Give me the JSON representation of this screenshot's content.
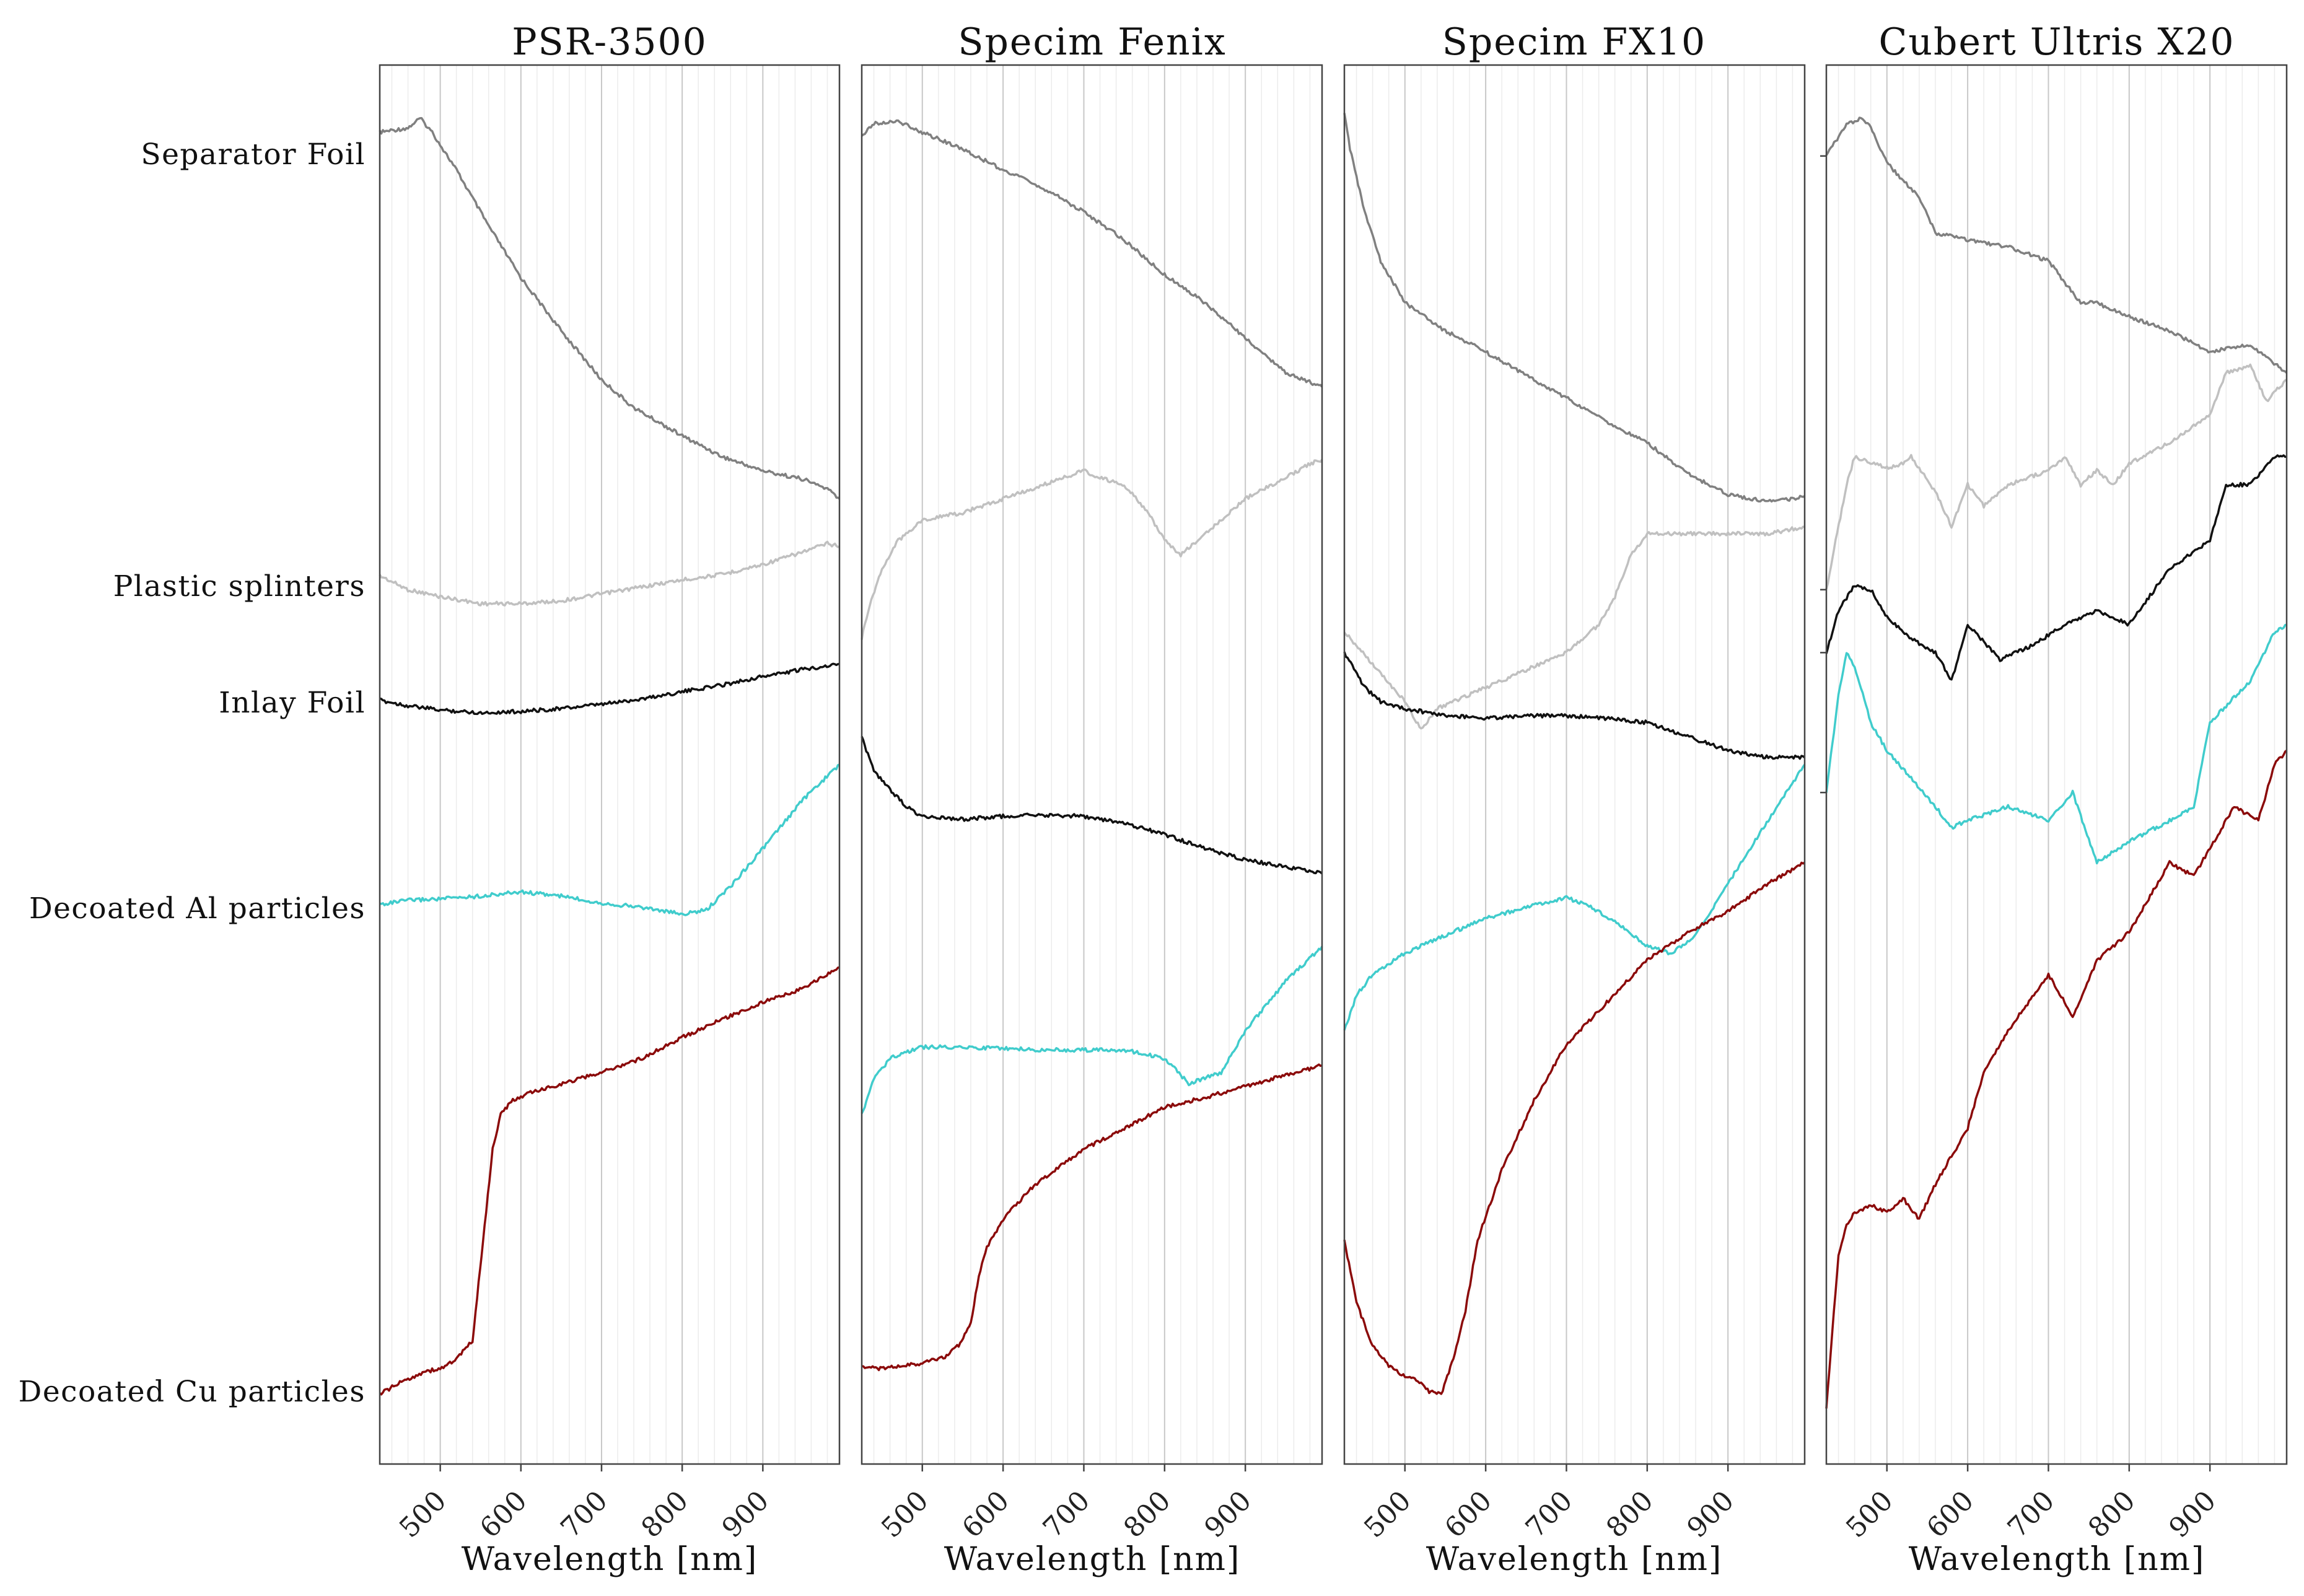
{
  "chart_data": {
    "type": "line",
    "xlabel": "Wavelength [nm]",
    "x_ticks": [
      500,
      600,
      700,
      800,
      900
    ],
    "xlim": [
      425,
      995
    ],
    "ylabel_markers": [
      "Separator Foil",
      "Plastic splinters",
      "Inlay Foil",
      "Decoated Al particles",
      "Decoated Cu particles"
    ],
    "series_styles": [
      {
        "name": "Separator Foil",
        "color": "#808080"
      },
      {
        "name": "Plastic splinters",
        "color": "#c0c0c0"
      },
      {
        "name": "Inlay Foil",
        "color": "#111111"
      },
      {
        "name": "Decoated Al particles",
        "color": "#40cccc"
      },
      {
        "name": "Decoated Cu particles",
        "color": "#8b0a0a"
      }
    ],
    "panels": [
      {
        "title": "PSR-3500",
        "y_range": [
          0,
          1
        ],
        "series": [
          {
            "name": "Separator Foil",
            "x": [
              425,
              460,
              475,
              490,
              520,
              560,
              600,
              650,
              700,
              740,
              800,
              850,
              900,
              950,
              980,
              995
            ],
            "y": [
              0.952,
              0.955,
              0.962,
              0.952,
              0.925,
              0.885,
              0.848,
              0.81,
              0.775,
              0.755,
              0.735,
              0.72,
              0.71,
              0.704,
              0.697,
              0.69
            ]
          },
          {
            "name": "Plastic splinters",
            "x": [
              425,
              460,
              500,
              550,
              600,
              650,
              700,
              750,
              800,
              850,
              900,
              950,
              980,
              995
            ],
            "y": [
              0.635,
              0.625,
              0.62,
              0.615,
              0.615,
              0.617,
              0.622,
              0.627,
              0.632,
              0.636,
              0.643,
              0.652,
              0.658,
              0.656
            ]
          },
          {
            "name": "Inlay Foil",
            "x": [
              425,
              460,
              500,
              550,
              600,
              650,
              700,
              750,
              800,
              850,
              900,
              950,
              995
            ],
            "y": [
              0.546,
              0.542,
              0.539,
              0.537,
              0.538,
              0.54,
              0.543,
              0.547,
              0.552,
              0.557,
              0.563,
              0.568,
              0.572
            ]
          },
          {
            "name": "Decoated Al particles",
            "x": [
              425,
              460,
              500,
              550,
              600,
              650,
              700,
              750,
              800,
              830,
              860,
              900,
              950,
              995
            ],
            "y": [
              0.4,
              0.403,
              0.404,
              0.406,
              0.409,
              0.406,
              0.401,
              0.398,
              0.393,
              0.396,
              0.413,
              0.44,
              0.475,
              0.5
            ]
          },
          {
            "name": "Decoated Cu particles",
            "x": [
              425,
              450,
              480,
              500,
              520,
              540,
              555,
              565,
              575,
              590,
              610,
              640,
              700,
              750,
              800,
              850,
              900,
              950,
              995
            ],
            "y": [
              0.05,
              0.058,
              0.066,
              0.068,
              0.075,
              0.088,
              0.17,
              0.225,
              0.25,
              0.26,
              0.265,
              0.27,
              0.28,
              0.29,
              0.305,
              0.318,
              0.33,
              0.34,
              0.355
            ]
          }
        ]
      },
      {
        "title": "Specim Fenix",
        "y_range": [
          0,
          1
        ],
        "series": [
          {
            "name": "Separator Foil",
            "x": [
              425,
              440,
              470,
              500,
              550,
              600,
              650,
              700,
              750,
              800,
              850,
              900,
              950,
              995
            ],
            "y": [
              0.95,
              0.958,
              0.96,
              0.952,
              0.94,
              0.925,
              0.912,
              0.895,
              0.875,
              0.85,
              0.83,
              0.805,
              0.78,
              0.77
            ]
          },
          {
            "name": "Plastic splinters",
            "x": [
              425,
              435,
              450,
              470,
              500,
              550,
              600,
              650,
              700,
              720,
              750,
              780,
              800,
              820,
              850,
              900,
              950,
              980,
              995
            ],
            "y": [
              0.59,
              0.615,
              0.64,
              0.66,
              0.675,
              0.68,
              0.69,
              0.7,
              0.71,
              0.705,
              0.7,
              0.68,
              0.66,
              0.65,
              0.665,
              0.69,
              0.705,
              0.715,
              0.718
            ]
          },
          {
            "name": "Inlay Foil",
            "x": [
              425,
              440,
              460,
              480,
              500,
              550,
              600,
              650,
              700,
              750,
              800,
              850,
              900,
              950,
              995
            ],
            "y": [
              0.52,
              0.495,
              0.482,
              0.47,
              0.463,
              0.461,
              0.463,
              0.464,
              0.463,
              0.458,
              0.45,
              0.44,
              0.432,
              0.427,
              0.422
            ]
          },
          {
            "name": "Decoated Al particles",
            "x": [
              425,
              440,
              460,
              500,
              550,
              600,
              650,
              700,
              750,
              800,
              830,
              870,
              900,
              950,
              995
            ],
            "y": [
              0.25,
              0.275,
              0.29,
              0.298,
              0.298,
              0.297,
              0.296,
              0.296,
              0.296,
              0.29,
              0.272,
              0.28,
              0.31,
              0.345,
              0.37
            ]
          },
          {
            "name": "Decoated Cu particles",
            "x": [
              425,
              450,
              500,
              530,
              545,
              560,
              570,
              580,
              600,
              640,
              700,
              750,
              800,
              850,
              900,
              950,
              995
            ],
            "y": [
              0.07,
              0.068,
              0.072,
              0.077,
              0.085,
              0.1,
              0.135,
              0.155,
              0.175,
              0.2,
              0.225,
              0.24,
              0.255,
              0.262,
              0.27,
              0.278,
              0.285
            ]
          }
        ]
      },
      {
        "title": "Specim FX10",
        "y_range": [
          0,
          1
        ],
        "series": [
          {
            "name": "Separator Foil",
            "x": [
              425,
              432,
              440,
              450,
              470,
              500,
              550,
              600,
              650,
              700,
              750,
              800,
              850,
              900,
              950,
              980,
              995
            ],
            "y": [
              0.965,
              0.94,
              0.92,
              0.895,
              0.86,
              0.83,
              0.81,
              0.795,
              0.778,
              0.762,
              0.745,
              0.73,
              0.708,
              0.693,
              0.688,
              0.69,
              0.692
            ]
          },
          {
            "name": "Plastic splinters",
            "x": [
              425,
              440,
              470,
              500,
              520,
              540,
              580,
              620,
              660,
              700,
              740,
              760,
              780,
              800,
              850,
              900,
              950,
              995
            ],
            "y": [
              0.595,
              0.585,
              0.565,
              0.545,
              0.525,
              0.54,
              0.55,
              0.56,
              0.57,
              0.58,
              0.6,
              0.62,
              0.65,
              0.665,
              0.665,
              0.665,
              0.665,
              0.67
            ]
          },
          {
            "name": "Inlay Foil",
            "x": [
              425,
              435,
              450,
              470,
              500,
              550,
              600,
              650,
              700,
              750,
              800,
              850,
              900,
              950,
              995
            ],
            "y": [
              0.58,
              0.57,
              0.555,
              0.545,
              0.54,
              0.535,
              0.533,
              0.535,
              0.535,
              0.533,
              0.53,
              0.52,
              0.51,
              0.505,
              0.505
            ]
          },
          {
            "name": "Decoated Al particles",
            "x": [
              425,
              440,
              460,
              500,
              550,
              600,
              650,
              700,
              730,
              760,
              800,
              830,
              860,
              900,
              950,
              995
            ],
            "y": [
              0.31,
              0.335,
              0.35,
              0.365,
              0.378,
              0.39,
              0.398,
              0.405,
              0.398,
              0.388,
              0.37,
              0.365,
              0.378,
              0.415,
              0.46,
              0.5
            ]
          },
          {
            "name": "Decoated Cu particles",
            "x": [
              425,
              440,
              460,
              480,
              500,
              520,
              530,
              545,
              560,
              575,
              590,
              620,
              660,
              700,
              750,
              800,
              850,
              900,
              950,
              995
            ],
            "y": [
              0.16,
              0.115,
              0.085,
              0.07,
              0.063,
              0.058,
              0.052,
              0.05,
              0.075,
              0.11,
              0.16,
              0.21,
              0.26,
              0.3,
              0.33,
              0.36,
              0.38,
              0.395,
              0.415,
              0.43
            ]
          }
        ]
      },
      {
        "title": "Cubert Ultris X20",
        "y_range": [
          0,
          1
        ],
        "series": [
          {
            "name": "Separator Foil",
            "x": [
              425,
              450,
              470,
              480,
              500,
              540,
              560,
              600,
              650,
              700,
              720,
              740,
              760,
              800,
              850,
              900,
              950,
              995
            ],
            "y": [
              0.935,
              0.958,
              0.962,
              0.955,
              0.93,
              0.905,
              0.88,
              0.875,
              0.87,
              0.86,
              0.845,
              0.83,
              0.83,
              0.82,
              0.81,
              0.795,
              0.8,
              0.78
            ]
          },
          {
            "name": "Plastic splinters",
            "x": [
              425,
              450,
              460,
              470,
              500,
              520,
              530,
              560,
              580,
              600,
              620,
              650,
              700,
              720,
              740,
              760,
              780,
              800,
              850,
              900,
              920,
              950,
              970,
              995
            ],
            "y": [
              0.625,
              0.7,
              0.72,
              0.718,
              0.712,
              0.715,
              0.72,
              0.695,
              0.67,
              0.7,
              0.685,
              0.7,
              0.71,
              0.72,
              0.7,
              0.71,
              0.7,
              0.715,
              0.73,
              0.75,
              0.78,
              0.785,
              0.76,
              0.775
            ]
          },
          {
            "name": "Inlay Foil",
            "x": [
              425,
              440,
              460,
              480,
              500,
              530,
              560,
              580,
              600,
              640,
              680,
              720,
              760,
              800,
              850,
              900,
              920,
              950,
              980,
              995
            ],
            "y": [
              0.58,
              0.61,
              0.628,
              0.625,
              0.605,
              0.59,
              0.58,
              0.56,
              0.6,
              0.575,
              0.585,
              0.6,
              0.61,
              0.6,
              0.64,
              0.66,
              0.7,
              0.7,
              0.72,
              0.72
            ]
          },
          {
            "name": "Decoated Al particles",
            "x": [
              425,
              440,
              450,
              460,
              480,
              500,
              530,
              560,
              580,
              600,
              650,
              700,
              730,
              760,
              800,
              850,
              880,
              900,
              950,
              980,
              995
            ],
            "y": [
              0.48,
              0.55,
              0.58,
              0.57,
              0.53,
              0.51,
              0.49,
              0.47,
              0.455,
              0.46,
              0.47,
              0.46,
              0.48,
              0.43,
              0.445,
              0.46,
              0.47,
              0.53,
              0.56,
              0.595,
              0.6
            ]
          },
          {
            "name": "Decoated Cu particles",
            "x": [
              425,
              440,
              450,
              460,
              480,
              500,
              520,
              540,
              560,
              580,
              600,
              620,
              650,
              700,
              730,
              760,
              780,
              800,
              850,
              880,
              900,
              930,
              960,
              980,
              995
            ],
            "y": [
              0.04,
              0.15,
              0.17,
              0.18,
              0.185,
              0.18,
              0.19,
              0.175,
              0.2,
              0.22,
              0.24,
              0.28,
              0.31,
              0.35,
              0.32,
              0.36,
              0.37,
              0.38,
              0.43,
              0.42,
              0.44,
              0.47,
              0.46,
              0.5,
              0.51
            ]
          }
        ]
      }
    ]
  }
}
